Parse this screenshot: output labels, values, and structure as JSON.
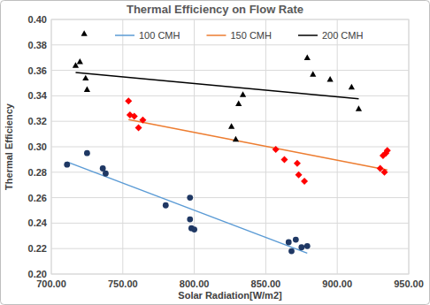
{
  "chart_data": {
    "type": "scatter",
    "title": "Thermal Efficiency on Flow Rate",
    "x_label": "Solar Radiation[W/m2]",
    "y_label": "Thermal Efficiency",
    "xlim": [
      700,
      950
    ],
    "xticks": [
      {
        "value": 700,
        "label": "700.00"
      },
      {
        "value": 750,
        "label": "750.00"
      },
      {
        "value": 800,
        "label": "800.00"
      },
      {
        "value": 850,
        "label": "850.00"
      },
      {
        "value": 900,
        "label": "900.00"
      },
      {
        "value": 950,
        "label": "950.00"
      }
    ],
    "ylim": [
      0.2,
      0.4
    ],
    "yticks": [
      {
        "value": 0.2,
        "label": "0.20"
      },
      {
        "value": 0.22,
        "label": "0.22"
      },
      {
        "value": 0.24,
        "label": "0.24"
      },
      {
        "value": 0.26,
        "label": "0.26"
      },
      {
        "value": 0.28,
        "label": "0.28"
      },
      {
        "value": 0.3,
        "label": "0.30"
      },
      {
        "value": 0.32,
        "label": "0.32"
      },
      {
        "value": 0.34,
        "label": "0.34"
      },
      {
        "value": 0.36,
        "label": "0.36"
      },
      {
        "value": 0.38,
        "label": "0.38"
      },
      {
        "value": 0.4,
        "label": "0.40"
      }
    ],
    "grid": true,
    "legend": "top",
    "series": [
      {
        "name": "100 CMH",
        "color": "#5b9bd5",
        "marker": "circle",
        "line_style": "solid",
        "x": [
          711,
          725,
          736,
          738,
          780,
          797,
          797,
          798,
          800,
          866,
          868,
          871,
          875,
          879
        ],
        "values": [
          0.286,
          0.295,
          0.283,
          0.279,
          0.254,
          0.26,
          0.243,
          0.236,
          0.235,
          0.225,
          0.218,
          0.227,
          0.221,
          0.222
        ],
        "colors": [
          "#1f3864",
          "#1f3864",
          "#1f3864",
          "#1f3864",
          "#1f3864",
          "#1f3864",
          "#1f3864",
          "#1f3864",
          "#1f3864",
          "#1f3864",
          "#1f3864",
          "#1f3864",
          "#1f3864",
          "#1f3864"
        ]
      },
      {
        "name": "150 CMH",
        "color": "#ed7d31",
        "marker": "diamond",
        "line_style": "solid",
        "x": [
          754,
          755,
          758,
          761,
          764,
          857,
          863,
          872,
          873,
          877,
          930,
          932,
          933,
          934,
          935
        ],
        "values": [
          0.336,
          0.325,
          0.324,
          0.315,
          0.321,
          0.298,
          0.29,
          0.287,
          0.278,
          0.273,
          0.283,
          0.293,
          0.28,
          0.295,
          0.297
        ],
        "colors": [
          "#ff0000",
          "#ff0000",
          "#ff0000",
          "#ff0000",
          "#ff0000",
          "#ff0000",
          "#ff0000",
          "#ff0000",
          "#ff0000",
          "#ff0000",
          "#ff0000",
          "#ff0000",
          "#ff0000",
          "#ff0000",
          "#ff0000"
        ]
      },
      {
        "name": "200 CMH",
        "color": "#000000",
        "marker": "triangle",
        "line_style": "solid",
        "x": [
          717,
          720,
          723,
          724,
          725,
          826,
          829,
          831,
          834,
          879,
          883,
          895,
          910,
          915
        ],
        "values": [
          0.364,
          0.367,
          0.389,
          0.354,
          0.345,
          0.316,
          0.306,
          0.334,
          0.341,
          0.37,
          0.357,
          0.353,
          0.347,
          0.33
        ],
        "colors": [
          "#000000",
          "#000000",
          "#000000",
          "#000000",
          "#000000",
          "#000000",
          "#000000",
          "#000000",
          "#000000",
          "#000000",
          "#000000",
          "#000000",
          "#000000",
          "#000000"
        ]
      }
    ]
  }
}
